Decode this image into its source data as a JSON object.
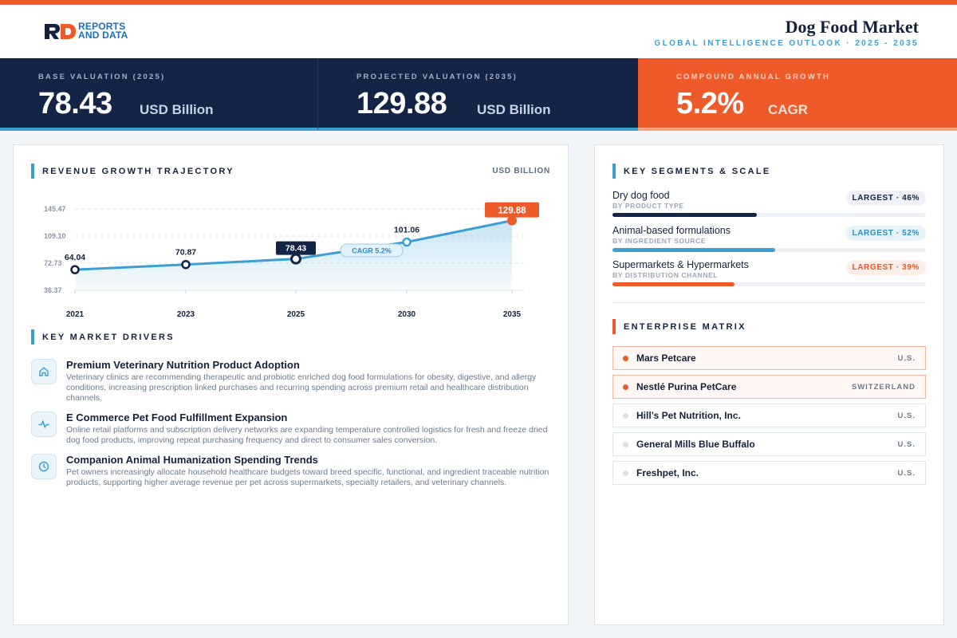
{
  "brand": {
    "name_line1": "REPORTS",
    "name_line2": "AND DATA"
  },
  "header": {
    "title": "Dog Food Market",
    "subtitle": "GLOBAL INTELLIGENCE OUTLOOK · 2025 - 2035"
  },
  "stats": [
    {
      "label": "BASE VALUATION (2025)",
      "value": "78.43",
      "unit": "USD Billion"
    },
    {
      "label": "PROJECTED VALUATION (2035)",
      "value": "129.88",
      "unit": "USD Billion"
    },
    {
      "label": "COMPOUND ANNUAL GROWTH",
      "value": "5.2%",
      "unit": "CAGR"
    }
  ],
  "revenue": {
    "title": "REVENUE GROWTH TRAJECTORY",
    "unit": "USD BILLION"
  },
  "chart_data": {
    "type": "line",
    "x": [
      "2021",
      "2023",
      "2025",
      "2030",
      "2035"
    ],
    "series": [
      {
        "values": [
          64.04,
          70.87,
          78.43,
          101.06,
          129.88
        ]
      }
    ],
    "data_labels": [
      "64.04",
      "70.87",
      "78.43",
      "101.06",
      "129.88"
    ],
    "y_ticks": [
      "145.47",
      "109.10",
      "72.73",
      "36.37"
    ],
    "y_tick_values": [
      145.47,
      109.1,
      72.73,
      36.37
    ],
    "ylim": [
      36.37,
      145.47
    ],
    "annotation": "CAGR 5.2%",
    "highlight_colors": {
      "line": "#3b9fd4",
      "base": "#132446",
      "end": "#ee5a2a"
    },
    "grid": true
  },
  "drivers": {
    "title": "KEY MARKET DRIVERS",
    "items": [
      {
        "icon": "home-icon",
        "title": "Premium Veterinary Nutrition Product Adoption",
        "desc": "Veterinary clinics are recommending therapeutic and probiotic enriched dog food formulations for obesity, digestive, and allergy conditions, increasing prescription linked purchases and recurring spending across premium retail and healthcare distribution channels."
      },
      {
        "icon": "activity-icon",
        "title": "E Commerce Pet Food Fulfillment Expansion",
        "desc": "Online retail platforms and subscription delivery networks are expanding temperature controlled logistics for fresh and freeze dried dog food products, improving repeat purchasing frequency and direct to consumer sales conversion."
      },
      {
        "icon": "clock-icon",
        "title": "Companion Animal Humanization Spending Trends",
        "desc": "Pet owners increasingly allocate household healthcare budgets toward breed specific, functional, and ingredient traceable nutrition products, supporting higher average revenue per pet across supermarkets, specialty retailers, and veterinary channels."
      }
    ]
  },
  "segments": {
    "title": "KEY SEGMENTS & SCALE",
    "items": [
      {
        "name": "Dry dog food",
        "sub": "BY PRODUCT TYPE",
        "badge": "LARGEST · 46%",
        "share": 46,
        "color": "#132446",
        "badge_bg": "#eef1f5",
        "badge_color": "#132446"
      },
      {
        "name": "Animal-based formulations",
        "sub": "BY INGREDIENT SOURCE",
        "badge": "LARGEST · 52%",
        "share": 52,
        "color": "#3b9fd4",
        "badge_bg": "#e6f3fb",
        "badge_color": "#2d8cc4"
      },
      {
        "name": "Supermarkets & Hypermarkets",
        "sub": "BY DISTRIBUTION CHANNEL",
        "badge": "LARGEST · 39%",
        "share": 39,
        "color": "#ee5a2a",
        "badge_bg": "#fdeee8",
        "badge_color": "#e4572a"
      }
    ]
  },
  "enterprise": {
    "title": "ENTERPRISE MATRIX",
    "items": [
      {
        "name": "Mars Petcare",
        "country": "U.S.",
        "highlight": true
      },
      {
        "name": "Nestlé Purina PetCare",
        "country": "SWITZERLAND",
        "highlight": true
      },
      {
        "name": "Hill’s Pet Nutrition, Inc.",
        "country": "U.S.",
        "highlight": false
      },
      {
        "name": "General Mills Blue Buffalo",
        "country": "U.S.",
        "highlight": false
      },
      {
        "name": "Freshpet, Inc.",
        "country": "U.S.",
        "highlight": false
      }
    ]
  }
}
